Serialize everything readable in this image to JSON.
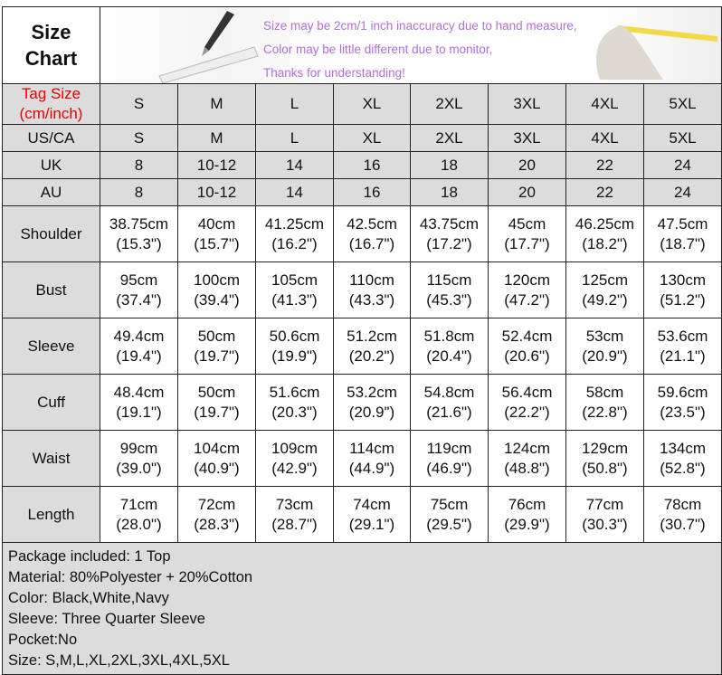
{
  "title": "Size Chart",
  "notes": [
    "Size may be 2cm/1 inch inaccuracy due to hand measure,",
    "Color may be little different due to monitor,",
    "Thanks for understanding!"
  ],
  "tag_size_label": "Tag Size (cm/inch)",
  "sizes": [
    "S",
    "M",
    "L",
    "XL",
    "2XL",
    "3XL",
    "4XL",
    "5XL"
  ],
  "region_rows": [
    {
      "label": "US/CA",
      "values": [
        "S",
        "M",
        "L",
        "XL",
        "2XL",
        "3XL",
        "4XL",
        "5XL"
      ]
    },
    {
      "label": "UK",
      "values": [
        "8",
        "10-12",
        "14",
        "16",
        "18",
        "20",
        "22",
        "24"
      ]
    },
    {
      "label": "AU",
      "values": [
        "8",
        "10-12",
        "14",
        "16",
        "18",
        "20",
        "22",
        "24"
      ]
    }
  ],
  "measure_rows": [
    {
      "label": "Shoulder",
      "cm": [
        "38.75cm",
        "40cm",
        "41.25cm",
        "42.5cm",
        "43.75cm",
        "45cm",
        "46.25cm",
        "47.5cm"
      ],
      "inch": [
        "(15.3\")",
        "(15.7\")",
        "(16.2\")",
        "(16.7\")",
        "(17.2\")",
        "(17.7\")",
        "(18.2\")",
        "(18.7\")"
      ]
    },
    {
      "label": "Bust",
      "cm": [
        "95cm",
        "100cm",
        "105cm",
        "110cm",
        "115cm",
        "120cm",
        "125cm",
        "130cm"
      ],
      "inch": [
        "(37.4\")",
        "(39.4\")",
        "(41.3\")",
        "(43.3\")",
        "(45.3\")",
        "(47.2\")",
        "(49.2\")",
        "(51.2\")"
      ]
    },
    {
      "label": "Sleeve",
      "cm": [
        "49.4cm",
        "50cm",
        "50.6cm",
        "51.2cm",
        "51.8cm",
        "52.4cm",
        "53cm",
        "53.6cm"
      ],
      "inch": [
        "(19.4\")",
        "(19.7\")",
        "(19.9\")",
        "(20.2\")",
        "(20.4\")",
        "(20.6\")",
        "(20.9\")",
        "(21.1\")"
      ]
    },
    {
      "label": "Cuff",
      "cm": [
        "48.4cm",
        "50cm",
        "51.6cm",
        "53.2cm",
        "54.8cm",
        "56.4cm",
        "58cm",
        "59.6cm"
      ],
      "inch": [
        "(19.1\")",
        "(19.7\")",
        "(20.3\")",
        "(20.9\")",
        "(21.6\")",
        "(22.2\")",
        "(22.8\")",
        "(23.5\")"
      ]
    },
    {
      "label": "Waist",
      "cm": [
        "99cm",
        "104cm",
        "109cm",
        "114cm",
        "119cm",
        "124cm",
        "129cm",
        "134cm"
      ],
      "inch": [
        "(39.0\")",
        "(40.9\")",
        "(42.9\")",
        "(44.9\")",
        "(46.9\")",
        "(48.8\")",
        "(50.8\")",
        "(52.8\")"
      ]
    },
    {
      "label": "Length",
      "cm": [
        "71cm",
        "72cm",
        "73cm",
        "74cm",
        "75cm",
        "76cm",
        "77cm",
        "78cm"
      ],
      "inch": [
        "(28.0\")",
        "(28.3\")",
        "(28.7\")",
        "(29.1\")",
        "(29.5\")",
        "(29.9\")",
        "(30.3\")",
        "(30.7\")"
      ]
    }
  ],
  "footer": [
    "Package included: 1 Top",
    "Material: 80%Polyester + 20%Cotton",
    "Color: Black,White,Navy",
    "Sleeve: Three Quarter Sleeve",
    "Pocket:No",
    "Size: S,M,L,XL,2XL,3XL,4XL,5XL"
  ],
  "colors": {
    "tag_label": "#e00000",
    "notes": "#b26fd6",
    "grey_cell": "#dcdcdc"
  }
}
